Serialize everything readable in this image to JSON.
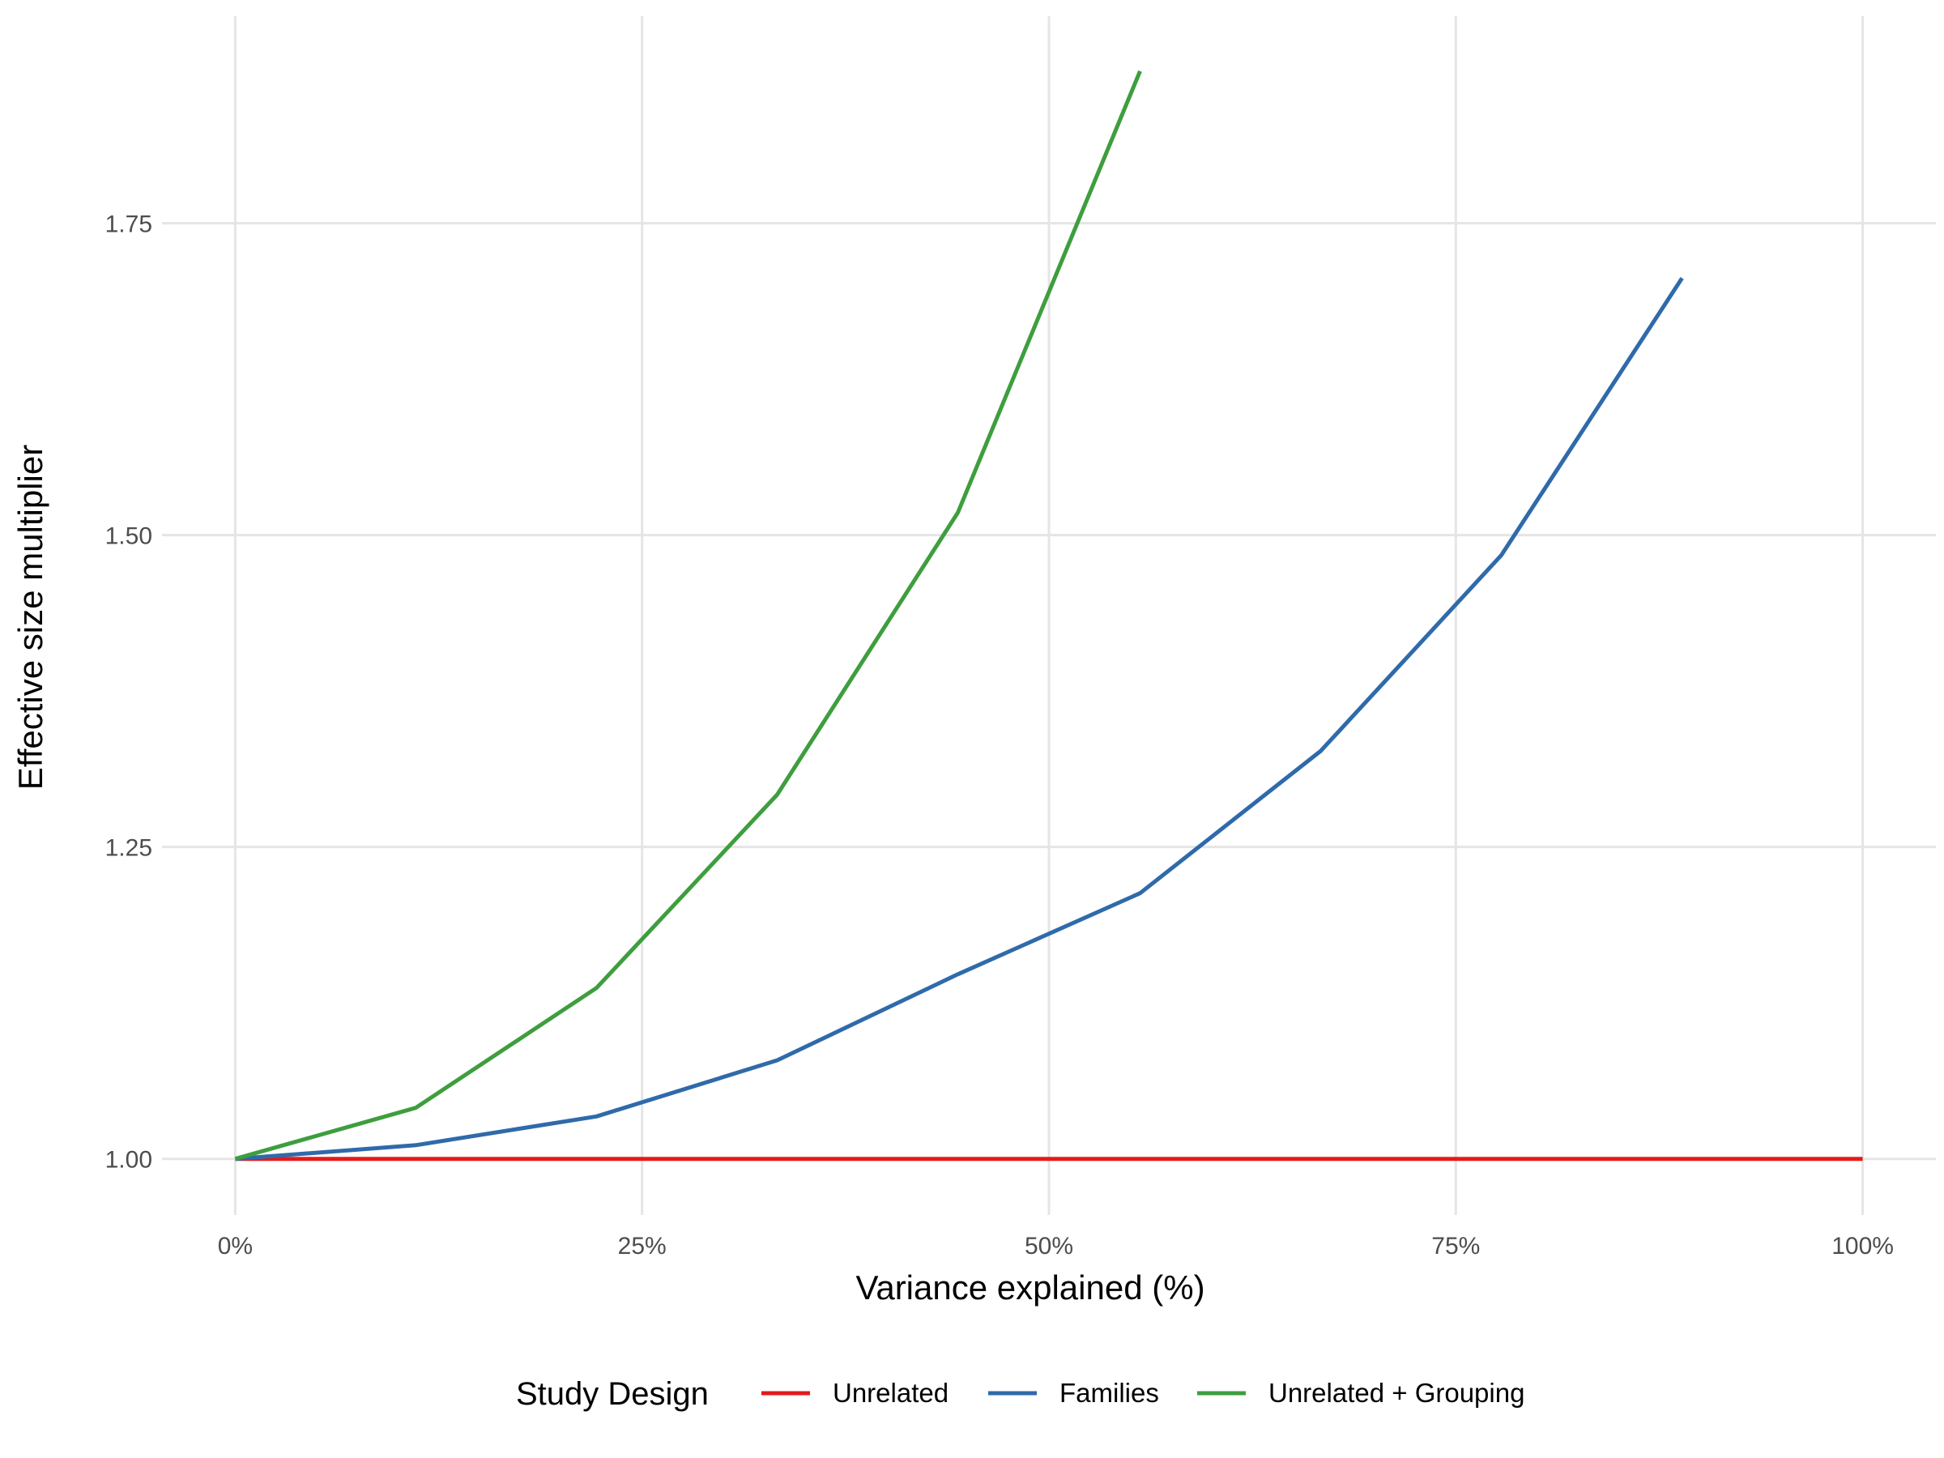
{
  "chart_data": {
    "type": "line",
    "title": "",
    "xlabel": "Variance explained (%)",
    "ylabel": "Effective size multiplier",
    "xlim": [
      -0.045,
      1.045
    ],
    "ylim": [
      0.955,
      1.916
    ],
    "x_ticks": [
      0,
      0.25,
      0.5,
      0.75,
      1.0
    ],
    "x_tick_labels": [
      "0%",
      "25%",
      "50%",
      "75%",
      "100%"
    ],
    "y_ticks": [
      1.0,
      1.25,
      1.5,
      1.75
    ],
    "y_tick_labels": [
      "1.00",
      "1.25",
      "1.50",
      "1.75"
    ],
    "grid": true,
    "legend": {
      "title": "Study Design",
      "position": "bottom"
    },
    "series": [
      {
        "name": "Unrelated",
        "color": "#e41a1c",
        "x": [
          0,
          0.111,
          0.222,
          0.333,
          0.444,
          0.556,
          0.667,
          0.778,
          0.889,
          1.0
        ],
        "y": [
          1.0,
          1.0,
          1.0,
          1.0,
          1.0,
          1.0,
          1.0,
          1.0,
          1.0,
          1.0
        ]
      },
      {
        "name": "Families",
        "color": "#2f6aaa",
        "x": [
          0,
          0.111,
          0.222,
          0.333,
          0.444,
          0.556,
          0.667,
          0.778,
          0.889
        ],
        "y": [
          1.0,
          1.011,
          1.034,
          1.079,
          1.148,
          1.213,
          1.327,
          1.484,
          1.706
        ]
      },
      {
        "name": "Unrelated + Grouping",
        "color": "#3e9e3e",
        "x": [
          0,
          0.111,
          0.222,
          0.333,
          0.444,
          0.556
        ],
        "y": [
          1.0,
          1.041,
          1.137,
          1.292,
          1.518,
          1.872
        ]
      }
    ]
  }
}
